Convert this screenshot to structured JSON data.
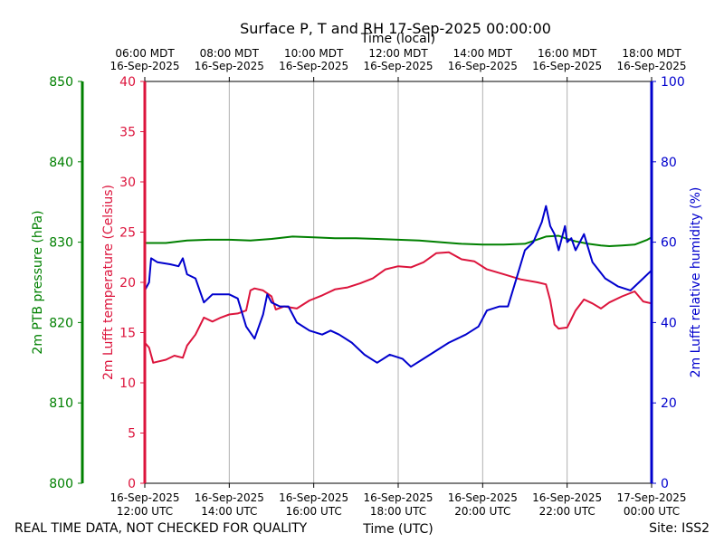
{
  "chart_data": {
    "type": "line",
    "title": "Surface P, T and RH 17-Sep-2025 00:00:00",
    "top_axis_title": "Time (local)",
    "bottom_axis_title": "Time (UTC)",
    "footer_left": "REAL TIME DATA, NOT CHECKED FOR QUALITY",
    "footer_right": "Site: ISS2",
    "x_range_hours": [
      0,
      12
    ],
    "x_ticks_utc": [
      {
        "hour": 0,
        "date": "16-Sep-2025",
        "time": "12:00 UTC"
      },
      {
        "hour": 2,
        "date": "16-Sep-2025",
        "time": "14:00 UTC"
      },
      {
        "hour": 4,
        "date": "16-Sep-2025",
        "time": "16:00 UTC"
      },
      {
        "hour": 6,
        "date": "16-Sep-2025",
        "time": "18:00 UTC"
      },
      {
        "hour": 8,
        "date": "16-Sep-2025",
        "time": "20:00 UTC"
      },
      {
        "hour": 10,
        "date": "16-Sep-2025",
        "time": "22:00 UTC"
      },
      {
        "hour": 12,
        "date": "17-Sep-2025",
        "time": "00:00 UTC"
      }
    ],
    "x_ticks_local": [
      {
        "hour": 0,
        "time": "06:00 MDT",
        "date": "16-Sep-2025"
      },
      {
        "hour": 2,
        "time": "08:00 MDT",
        "date": "16-Sep-2025"
      },
      {
        "hour": 4,
        "time": "10:00 MDT",
        "date": "16-Sep-2025"
      },
      {
        "hour": 6,
        "time": "12:00 MDT",
        "date": "16-Sep-2025"
      },
      {
        "hour": 8,
        "time": "14:00 MDT",
        "date": "16-Sep-2025"
      },
      {
        "hour": 10,
        "time": "16:00 MDT",
        "date": "16-Sep-2025"
      },
      {
        "hour": 12,
        "time": "18:00 MDT",
        "date": "16-Sep-2025"
      }
    ],
    "axes": {
      "temperature": {
        "label": "2m Lufft temperature (Celsius)",
        "range": [
          0,
          40
        ],
        "ticks": [
          0,
          5,
          10,
          15,
          20,
          25,
          30,
          35,
          40
        ],
        "color": "#dc143c"
      },
      "pressure": {
        "label": "2m PTB pressure (hPa)",
        "range": [
          800,
          850
        ],
        "ticks": [
          800,
          810,
          820,
          830,
          840,
          850
        ],
        "color": "#008000"
      },
      "humidity": {
        "label": "2m Lufft relative humidity (%)",
        "range": [
          0,
          100
        ],
        "ticks": [
          0,
          20,
          40,
          60,
          80,
          100
        ],
        "color": "#0000cd"
      }
    },
    "series": [
      {
        "name": "2m Lufft temperature (Celsius)",
        "axis": "temperature",
        "color": "#dc143c",
        "x": [
          0,
          0.1,
          0.2,
          0.3,
          0.5,
          0.7,
          0.9,
          1.0,
          1.2,
          1.4,
          1.6,
          1.8,
          2.0,
          2.2,
          2.4,
          2.5,
          2.6,
          2.8,
          3.0,
          3.1,
          3.3,
          3.6,
          3.9,
          4.2,
          4.5,
          4.8,
          5.1,
          5.4,
          5.7,
          6.0,
          6.3,
          6.6,
          6.9,
          7.2,
          7.5,
          7.8,
          8.1,
          8.5,
          8.9,
          9.3,
          9.5,
          9.6,
          9.7,
          9.8,
          10.0,
          10.2,
          10.4,
          10.6,
          10.8,
          11.0,
          11.3,
          11.6,
          11.8,
          12.0
        ],
        "values": [
          14.0,
          13.5,
          12.0,
          12.1,
          12.3,
          12.7,
          12.5,
          13.7,
          14.8,
          16.5,
          16.1,
          16.5,
          16.8,
          16.9,
          17.2,
          19.2,
          19.4,
          19.2,
          18.6,
          17.3,
          17.6,
          17.4,
          18.2,
          18.7,
          19.3,
          19.5,
          19.9,
          20.4,
          21.3,
          21.6,
          21.5,
          22.0,
          22.9,
          23.0,
          22.3,
          22.1,
          21.3,
          20.8,
          20.3,
          20.0,
          19.8,
          18.2,
          15.8,
          15.4,
          15.5,
          17.2,
          18.3,
          17.9,
          17.4,
          18.0,
          18.6,
          19.1,
          18.1,
          17.9
        ]
      },
      {
        "name": "2m PTB pressure (hPa)",
        "axis": "pressure",
        "color": "#008000",
        "x": [
          0,
          0.5,
          1.0,
          1.5,
          2.0,
          2.5,
          3.0,
          3.5,
          4.0,
          4.5,
          5.0,
          5.5,
          6.0,
          6.5,
          7.0,
          7.5,
          8.0,
          8.5,
          9.0,
          9.5,
          9.8,
          10.0,
          10.2,
          10.5,
          10.8,
          11.0,
          11.3,
          11.6,
          11.9,
          12.0
        ],
        "values": [
          829.9,
          829.9,
          830.2,
          830.3,
          830.3,
          830.2,
          830.4,
          830.7,
          830.6,
          830.5,
          830.5,
          830.4,
          830.3,
          830.2,
          830.0,
          829.8,
          829.7,
          829.7,
          829.8,
          830.7,
          830.8,
          830.4,
          830.1,
          829.8,
          829.6,
          829.5,
          829.6,
          829.7,
          830.3,
          830.6
        ]
      },
      {
        "name": "2m Lufft relative humidity (%)",
        "axis": "humidity",
        "color": "#0000cd",
        "x": [
          0,
          0.1,
          0.15,
          0.3,
          0.6,
          0.8,
          0.9,
          1.0,
          1.2,
          1.4,
          1.6,
          1.8,
          2.0,
          2.2,
          2.4,
          2.6,
          2.8,
          2.9,
          3.0,
          3.2,
          3.4,
          3.6,
          3.9,
          4.2,
          4.4,
          4.6,
          4.9,
          5.2,
          5.5,
          5.8,
          6.1,
          6.3,
          6.6,
          6.9,
          7.2,
          7.4,
          7.6,
          7.9,
          8.1,
          8.4,
          8.6,
          8.8,
          9.0,
          9.2,
          9.4,
          9.5,
          9.6,
          9.7,
          9.8,
          9.95,
          10.0,
          10.1,
          10.2,
          10.3,
          10.4,
          10.6,
          10.9,
          11.2,
          11.5,
          11.8,
          12.0
        ],
        "values": [
          48.0,
          50.0,
          56.0,
          55.0,
          54.5,
          54.0,
          56.0,
          52.0,
          51.0,
          45.0,
          47.0,
          47.0,
          47.0,
          46.0,
          39.0,
          36.0,
          42.0,
          47.0,
          45.0,
          44.0,
          44.0,
          40.0,
          38.0,
          37.0,
          38.0,
          37.0,
          35.0,
          32.0,
          30.0,
          32.0,
          31.0,
          29.0,
          31.0,
          33.0,
          35.0,
          36.0,
          37.0,
          39.0,
          43.0,
          44.0,
          44.0,
          51.0,
          58.0,
          60.0,
          65.0,
          69.0,
          64.0,
          62.0,
          58.0,
          64.0,
          60.0,
          61.0,
          58.0,
          60.0,
          62.0,
          55.0,
          51.0,
          49.0,
          48.0,
          51.0,
          53.0
        ]
      }
    ]
  }
}
